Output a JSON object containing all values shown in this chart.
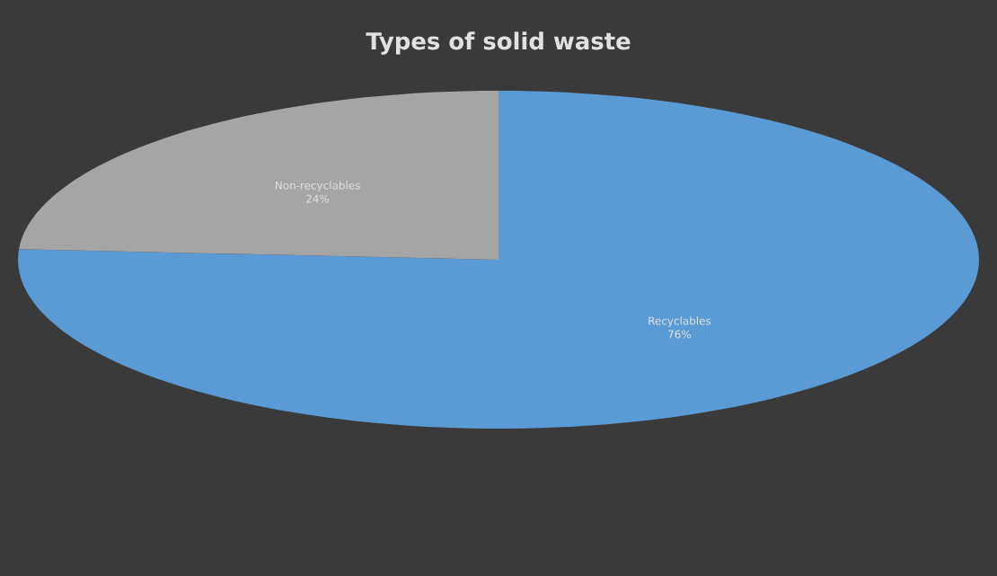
{
  "chart_data": {
    "type": "pie",
    "title": "Types of solid waste",
    "categories": [
      "Recyclables",
      "Non-recyclables"
    ],
    "values": [
      76,
      24
    ],
    "colors": [
      "#5b9bd5",
      "#a5a5a5"
    ],
    "value_labels": [
      "76%",
      "24%"
    ]
  }
}
